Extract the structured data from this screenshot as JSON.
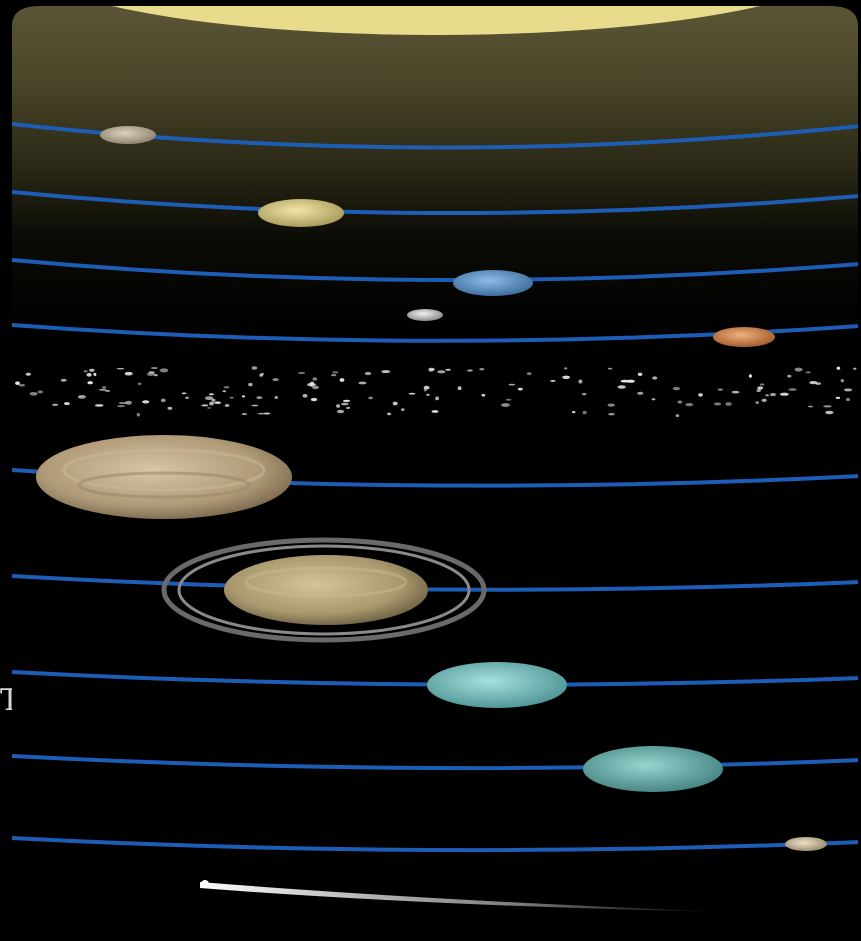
{
  "figure": {
    "type": "solar-system-illustration",
    "edge_glyph": "T",
    "objects": [
      {
        "name": "sun",
        "color": "#ecdf90"
      },
      {
        "name": "mercury",
        "color": "#b8ab94"
      },
      {
        "name": "venus",
        "color": "#d9cf8c"
      },
      {
        "name": "earth",
        "color": "#6b9ed0"
      },
      {
        "name": "moon",
        "color": "#cfcfcf"
      },
      {
        "name": "mars",
        "color": "#d18c52"
      },
      {
        "name": "asteroid-belt",
        "color": "#e6e6e6"
      },
      {
        "name": "jupiter",
        "color": "#b7a080"
      },
      {
        "name": "saturn",
        "color": "#b4a57d"
      },
      {
        "name": "uranus",
        "color": "#7cc4c4"
      },
      {
        "name": "neptune",
        "color": "#6fb2ae"
      },
      {
        "name": "pluto",
        "color": "#d6c4a8"
      },
      {
        "name": "comet",
        "color": "#e8e8e8"
      }
    ],
    "orbit_color": "#1d5db6"
  }
}
